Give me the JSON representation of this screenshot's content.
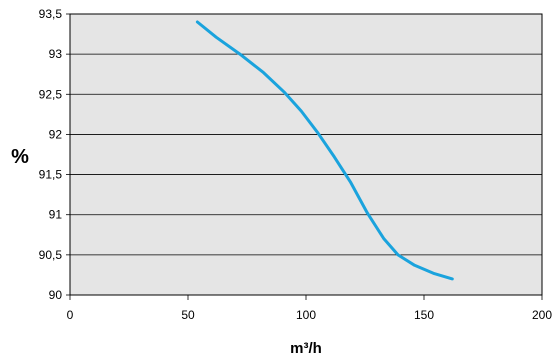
{
  "chart_data": {
    "type": "line",
    "title": "",
    "xlabel": "m³/h",
    "ylabel": "%",
    "xlim": [
      0,
      200
    ],
    "ylim": [
      90,
      93.5
    ],
    "x_ticks": [
      "0",
      "50",
      "100",
      "150",
      "200"
    ],
    "y_ticks": [
      "90",
      "90,5",
      "91",
      "91,5",
      "92",
      "92,5",
      "93",
      "93,5"
    ],
    "grid": "horizontal",
    "legend": "none",
    "colors": {
      "plot_bg": "#e5e5e5",
      "line": "#1aa3dd",
      "grid": "#000000"
    },
    "series": [
      {
        "x": [
          54,
          62,
          72,
          82,
          91,
          98,
          105,
          112,
          119,
          126,
          133,
          139,
          146,
          154,
          162
        ],
        "y": [
          93.4,
          93.21,
          93.0,
          92.77,
          92.52,
          92.29,
          92.02,
          91.72,
          91.4,
          91.02,
          90.7,
          90.5,
          90.37,
          90.27,
          90.2
        ]
      }
    ]
  }
}
